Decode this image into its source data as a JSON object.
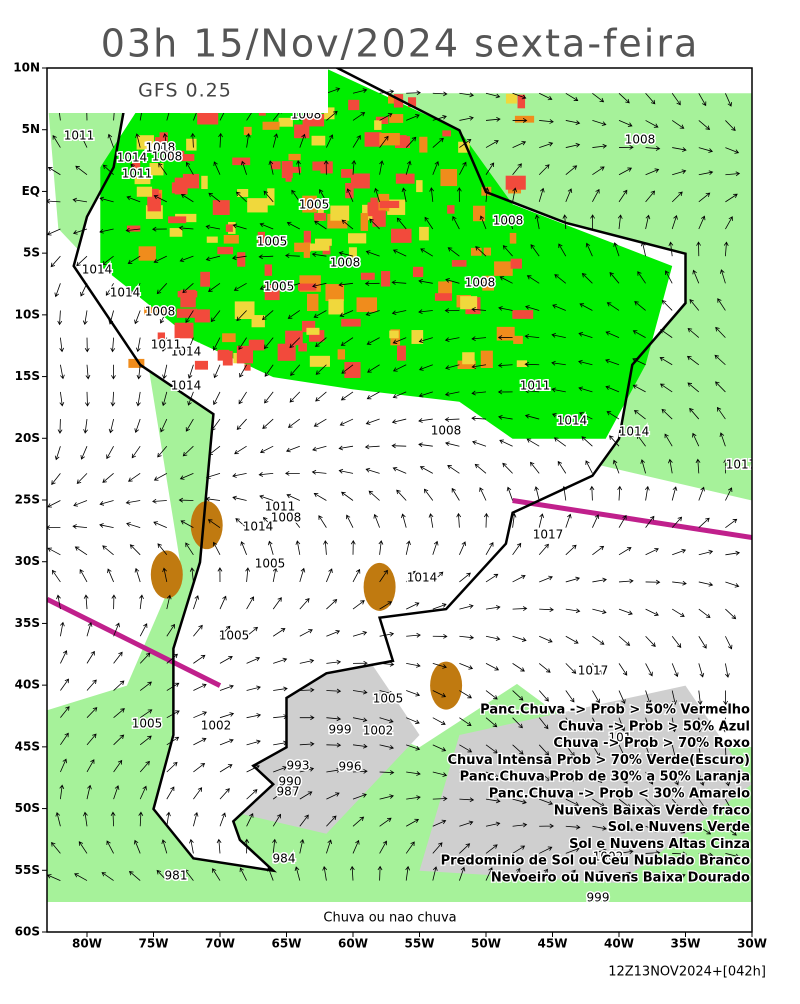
{
  "title": "03h 15/Nov/2024 sexta-feira",
  "model": "GFS 0.25",
  "map": {
    "lat_labels": [
      "10N",
      "5N",
      "EQ",
      "5S",
      "10S",
      "15S",
      "20S",
      "25S",
      "30S",
      "35S",
      "40S",
      "45S",
      "50S",
      "55S",
      "60S"
    ],
    "lon_labels": [
      "80W",
      "75W",
      "70W",
      "65W",
      "60W",
      "55W",
      "50W",
      "45W",
      "40W",
      "35W",
      "30W"
    ],
    "isobar_labels": [
      "1011",
      "1014",
      "1008",
      "101",
      "1011",
      "1008",
      "1008",
      "1005",
      "1005",
      "1008",
      "1014",
      "1005",
      "1008",
      "1014",
      "1008",
      "1008",
      "1011",
      "1014",
      "1014",
      "1011",
      "1014",
      "1008",
      "1014",
      "1017",
      "1008",
      "1011",
      "1008",
      "1014",
      "1017",
      "1005",
      "1014",
      "1005",
      "1017",
      "1005",
      "1002",
      "999",
      "1002",
      "993",
      "996",
      "990",
      "987",
      "984",
      "981",
      "101",
      "1005",
      "1002",
      "999"
    ],
    "bottom_label": "Chuva ou nao chuva"
  },
  "legend": [
    "Panc.Chuva -> Prob > 50% Vermelho",
    "Chuva -> Prob > 50% Azul",
    "Chuva -> Prob > 70% Roxo",
    "Chuva Intensa Prob > 70% Verde(Escuro)",
    "Panc.Chuva Prob de 30% a 50% Laranja",
    "Panc.Chuva -> Prob < 30% Amarelo",
    "Nuvens Baixas Verde fraco",
    "Sol e Nuvens Verde",
    "Sol e Nuvens Altas Cinza",
    "Predominio de Sol ou Ceu Nublado Branco",
    "Nevoeiro ou Nuvens Baixa Dourado"
  ],
  "timestamp": "12Z13NOV2024+[042h]"
}
